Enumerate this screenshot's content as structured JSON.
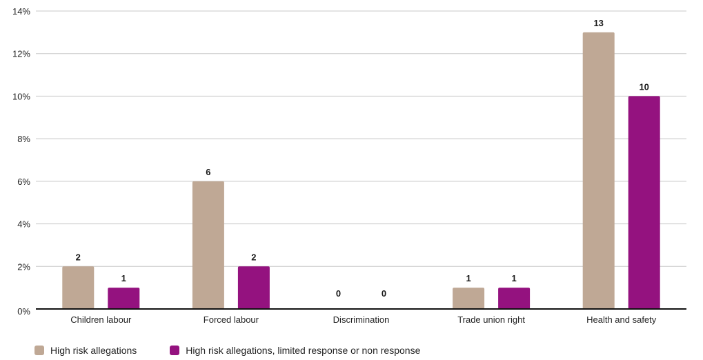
{
  "chart_data": {
    "type": "bar",
    "title": "",
    "xlabel": "",
    "ylabel": "",
    "y_ticks": [
      "0%",
      "2%",
      "4%",
      "6%",
      "8%",
      "10%",
      "12%",
      "14%"
    ],
    "ylim": [
      0,
      14
    ],
    "grid": true,
    "legend_position": "bottom-left",
    "categories": [
      "Children labour",
      "Forced labour",
      "Discrimination",
      "Trade union right",
      "Health and safety"
    ],
    "series": [
      {
        "name": "High risk allegations",
        "color": "#bfa895",
        "values": [
          2,
          6,
          0,
          1,
          13
        ],
        "labels": [
          "2",
          "6",
          "0",
          "1",
          "13"
        ]
      },
      {
        "name": "High risk allegations, limited response or non response",
        "color": "#94127f",
        "values": [
          1,
          2,
          0,
          1,
          10
        ],
        "labels": [
          "1",
          "2",
          "0",
          "1",
          "10"
        ]
      }
    ]
  }
}
